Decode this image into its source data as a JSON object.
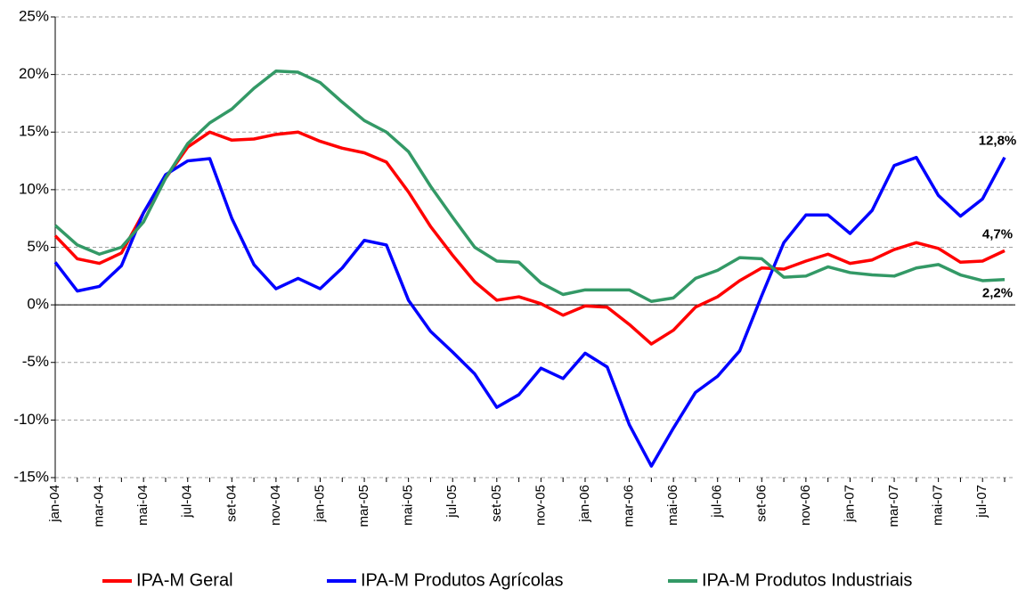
{
  "chart_data": {
    "type": "line",
    "categories": [
      "jan-04",
      null,
      "mar-04",
      null,
      "mai-04",
      null,
      "jul-04",
      null,
      "set-04",
      null,
      "nov-04",
      null,
      "jan-05",
      null,
      "mar-05",
      null,
      "mai-05",
      null,
      "jul-05",
      null,
      "set-05",
      null,
      "nov-05",
      null,
      "jan-06",
      null,
      "mar-06",
      null,
      "mai-06",
      null,
      "jul-06",
      null,
      "set-06",
      null,
      "nov-06",
      null,
      "jan-07",
      null,
      "mar-07",
      null,
      "mai-07",
      null,
      "jul-07",
      null
    ],
    "series": [
      {
        "name": "IPA-M Geral",
        "color": "#ff0000",
        "end_label": "4,7%",
        "values": [
          6.0,
          4.0,
          3.6,
          4.5,
          8.0,
          11.0,
          13.7,
          15.0,
          14.3,
          14.4,
          14.8,
          15.0,
          14.2,
          13.6,
          13.2,
          12.4,
          9.8,
          6.8,
          4.3,
          2.0,
          0.4,
          0.7,
          0.1,
          -0.9,
          -0.1,
          -0.2,
          -1.7,
          -3.4,
          -2.2,
          -0.2,
          0.7,
          2.1,
          3.2,
          3.1,
          3.8,
          4.4,
          3.6,
          3.9,
          4.8,
          5.4,
          4.9,
          3.7,
          3.8,
          4.7
        ]
      },
      {
        "name": "IPA-M Produtos Agrícolas",
        "color": "#0000ff",
        "end_label": "12,8%",
        "values": [
          3.7,
          1.2,
          1.6,
          3.4,
          8.0,
          11.3,
          12.5,
          12.7,
          7.5,
          3.5,
          1.4,
          2.3,
          1.4,
          3.2,
          5.6,
          5.2,
          0.4,
          -2.3,
          -4.1,
          -6.0,
          -8.9,
          -7.8,
          -5.5,
          -6.4,
          -4.2,
          -5.4,
          -10.4,
          -14.0,
          -10.7,
          -7.6,
          -6.2,
          -4.0,
          0.8,
          5.4,
          7.8,
          7.8,
          6.2,
          8.2,
          12.1,
          12.8,
          9.5,
          7.7,
          9.2,
          12.8
        ]
      },
      {
        "name": "IPA-M Produtos Industriais",
        "color": "#339966",
        "end_label": "2,2%",
        "values": [
          6.9,
          5.2,
          4.4,
          5.0,
          7.2,
          11.0,
          14.0,
          15.8,
          17.0,
          18.8,
          20.3,
          20.2,
          19.3,
          17.6,
          16.0,
          15.0,
          13.3,
          10.3,
          7.6,
          5.0,
          3.8,
          3.7,
          1.9,
          0.9,
          1.3,
          1.3,
          1.3,
          0.3,
          0.6,
          2.3,
          3.0,
          4.1,
          4.0,
          2.4,
          2.5,
          3.3,
          2.8,
          2.6,
          2.5,
          3.2,
          3.5,
          2.6,
          2.1,
          2.2
        ]
      }
    ],
    "ylim": [
      -15,
      25
    ],
    "yticks": [
      {
        "value": -15,
        "label": "-15%"
      },
      {
        "value": -10,
        "label": "-10%"
      },
      {
        "value": -5,
        "label": "-5%"
      },
      {
        "value": 0,
        "label": "0%"
      },
      {
        "value": 5,
        "label": "5%"
      },
      {
        "value": 10,
        "label": "10%"
      },
      {
        "value": 15,
        "label": "15%"
      },
      {
        "value": 20,
        "label": "20%"
      },
      {
        "value": 25,
        "label": "25%"
      }
    ],
    "grid": true
  }
}
